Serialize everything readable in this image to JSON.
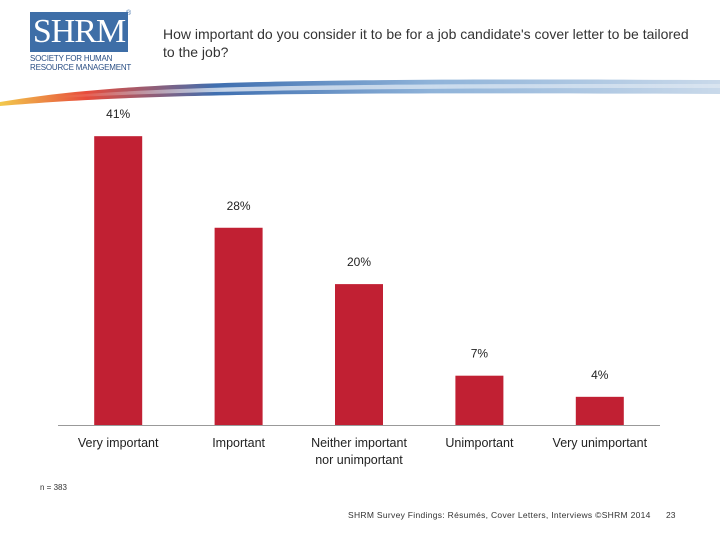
{
  "logo": {
    "letters": "SHRM",
    "registered": "®",
    "line1": "SOCIETY FOR HUMAN",
    "line2": "RESOURCE MANAGEMENT"
  },
  "colors": {
    "bar": "#c12033",
    "logo_blue": "#3e6ea7",
    "axis": "#999999"
  },
  "chart_data": {
    "type": "bar",
    "title": "How important do you consider it to be for a job candidate's cover letter to be tailored to the job?",
    "categories": [
      [
        "Very important"
      ],
      [
        "Important"
      ],
      [
        "Neither important",
        "nor unimportant"
      ],
      [
        "Unimportant"
      ],
      [
        "Very unimportant"
      ]
    ],
    "values": [
      41,
      28,
      20,
      7,
      4
    ],
    "value_labels": [
      "41%",
      "28%",
      "20%",
      "7%",
      "4%"
    ],
    "ylim": [
      0,
      45
    ],
    "grid": false,
    "legend": "none"
  },
  "note": "n = 383",
  "footer": "SHRM Survey Findings: Résumés, Cover Letters, Interviews ©SHRM 2014",
  "page_number": "23"
}
